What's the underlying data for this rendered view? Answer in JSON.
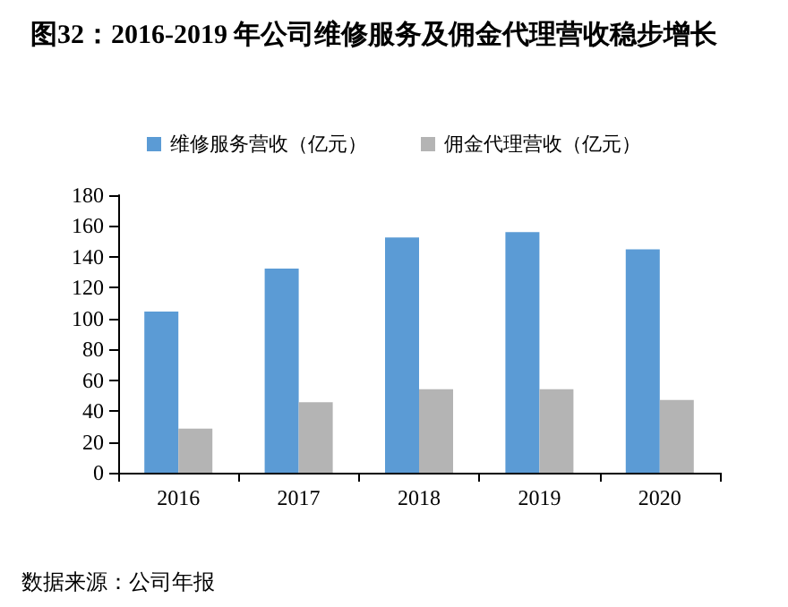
{
  "chart_data": {
    "type": "bar",
    "title": "图32：2016-2019 年公司维修服务及佣金代理营收稳步增长",
    "categories": [
      "2016",
      "2017",
      "2018",
      "2019",
      "2020"
    ],
    "series": [
      {
        "name": "维修服务营收（亿元）",
        "color": "#5b9bd5",
        "values": [
          104.5,
          132.4,
          152.5,
          156,
          144.8
        ]
      },
      {
        "name": "佣金代理营收（亿元）",
        "color": "#b4b4b4",
        "values": [
          28.6,
          45.7,
          54.2,
          54.2,
          47.2
        ]
      }
    ],
    "ylim": [
      0,
      180
    ],
    "yticks": [
      0,
      20,
      40,
      60,
      80,
      100,
      120,
      140,
      160,
      180
    ],
    "grid": false,
    "legend": "top",
    "annotations": [
      "数据来源：公司年报"
    ]
  }
}
